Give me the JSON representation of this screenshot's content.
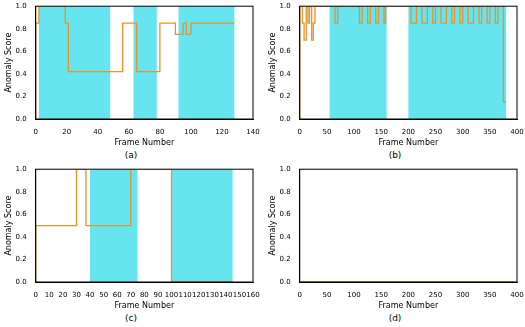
{
  "chart_data": [
    {
      "type": "line",
      "label": "(a)",
      "x_label": "Frame Number",
      "y_label": "Anomaly Score",
      "x": [
        0,
        2,
        19,
        21,
        56,
        65,
        80,
        90,
        95,
        97,
        100,
        102,
        128
      ],
      "values": [
        0,
        0.85,
        1.0,
        0.85,
        0.42,
        0.85,
        0.42,
        0.85,
        0.75,
        0.85,
        0.75,
        0.85,
        0.85
      ],
      "color": "#e8922a",
      "line_style": "step",
      "regions": [
        [
          2,
          48
        ],
        [
          63,
          78
        ],
        [
          92,
          128
        ]
      ],
      "xlim": [
        0,
        140
      ],
      "xticks": [
        0,
        20,
        40,
        60,
        80,
        100,
        120,
        140
      ],
      "ylim": [
        0,
        1
      ],
      "yticks": [
        {
          "value": 0,
          "label": "0.0"
        },
        {
          "value": 0.2,
          "label": "0.2"
        },
        {
          "value": 0.4,
          "label": "0.4"
        },
        {
          "value": 0.6,
          "label": "0.6"
        },
        {
          "value": 0.8,
          "label": "0.8"
        },
        {
          "value": 1,
          "label": "1.0"
        }
      ],
      "grid": false
    },
    {
      "type": "line",
      "label": "(b)",
      "x_label": "Frame Number",
      "y_label": "Anomaly Score",
      "x": [
        0,
        5,
        8,
        12,
        15,
        18,
        22,
        25,
        28,
        65,
        70,
        110,
        115,
        125,
        130,
        140,
        145,
        155,
        158,
        205,
        215,
        225,
        235,
        245,
        250,
        260,
        270,
        280,
        285,
        295,
        300,
        310,
        320,
        330,
        335,
        345,
        350,
        360,
        365,
        375,
        378,
        380
      ],
      "values": [
        0,
        1.0,
        0.85,
        0.7,
        1.0,
        0.85,
        1.0,
        0.7,
        0.85,
        1.0,
        0.85,
        1.0,
        0.85,
        1.0,
        0.85,
        1.0,
        0.85,
        1.0,
        0.85,
        1.0,
        0.85,
        1.0,
        0.85,
        1.0,
        0.85,
        1.0,
        0.85,
        1.0,
        0.85,
        1.0,
        0.85,
        1.0,
        0.85,
        1.0,
        0.85,
        1.0,
        0.85,
        1.0,
        0.85,
        1.0,
        0.15,
        0.15
      ],
      "color": "#e8922a",
      "line_style": "step",
      "regions": [
        [
          55,
          160
        ],
        [
          200,
          380
        ]
      ],
      "xlim": [
        0,
        400
      ],
      "xticks": [
        0,
        50,
        100,
        150,
        200,
        250,
        300,
        350,
        400
      ],
      "ylim": [
        0,
        1
      ],
      "yticks": [
        {
          "value": 0,
          "label": "0.0"
        },
        {
          "value": 0.2,
          "label": "0.2"
        },
        {
          "value": 0.4,
          "label": "0.4"
        },
        {
          "value": 0.6,
          "label": "0.6"
        },
        {
          "value": 0.8,
          "label": "0.8"
        },
        {
          "value": 1,
          "label": "1.0"
        }
      ],
      "grid": false
    },
    {
      "type": "line",
      "label": "(c)",
      "x_label": "Frame Number",
      "y_label": "Anomaly Score",
      "x": [
        0,
        30,
        37,
        70,
        100,
        145
      ],
      "values": [
        0,
        0.5,
        1.0,
        0.5,
        1.0,
        0
      ],
      "color": "#e8922a",
      "line_style": "step",
      "regions": [
        [
          40,
          75
        ],
        [
          100,
          145
        ]
      ],
      "xlim": [
        0,
        160
      ],
      "xticks": [
        0,
        10,
        20,
        30,
        40,
        50,
        60,
        70,
        80,
        90,
        100,
        110,
        120,
        130,
        140,
        150,
        160
      ],
      "ylim": [
        0,
        1
      ],
      "yticks": [
        {
          "value": 0,
          "label": "0.0"
        },
        {
          "value": 0.2,
          "label": "0.2"
        },
        {
          "value": 0.4,
          "label": "0.4"
        },
        {
          "value": 0.6,
          "label": "0.6"
        },
        {
          "value": 0.8,
          "label": "0.8"
        },
        {
          "value": 1,
          "label": "1.0"
        }
      ],
      "grid": false
    },
    {
      "type": "line",
      "label": "(d)",
      "x_label": "Frame Number",
      "y_label": "Anomaly Score",
      "x": [
        0,
        400
      ],
      "values": [
        0,
        0
      ],
      "color": "#e8922a",
      "line_style": "step",
      "regions": [],
      "xlim": [
        0,
        400
      ],
      "xticks": [
        0,
        50,
        100,
        150,
        200,
        250,
        300,
        350,
        400
      ],
      "ylim": [
        0,
        1
      ],
      "yticks": [
        {
          "value": 0,
          "label": "0.0"
        },
        {
          "value": 0.2,
          "label": "0.2"
        },
        {
          "value": 0.4,
          "label": "0.4"
        },
        {
          "value": 0.6,
          "label": "0.6"
        },
        {
          "value": 0.8,
          "label": "0.8"
        },
        {
          "value": 1,
          "label": "1.0"
        }
      ],
      "grid": false
    }
  ]
}
